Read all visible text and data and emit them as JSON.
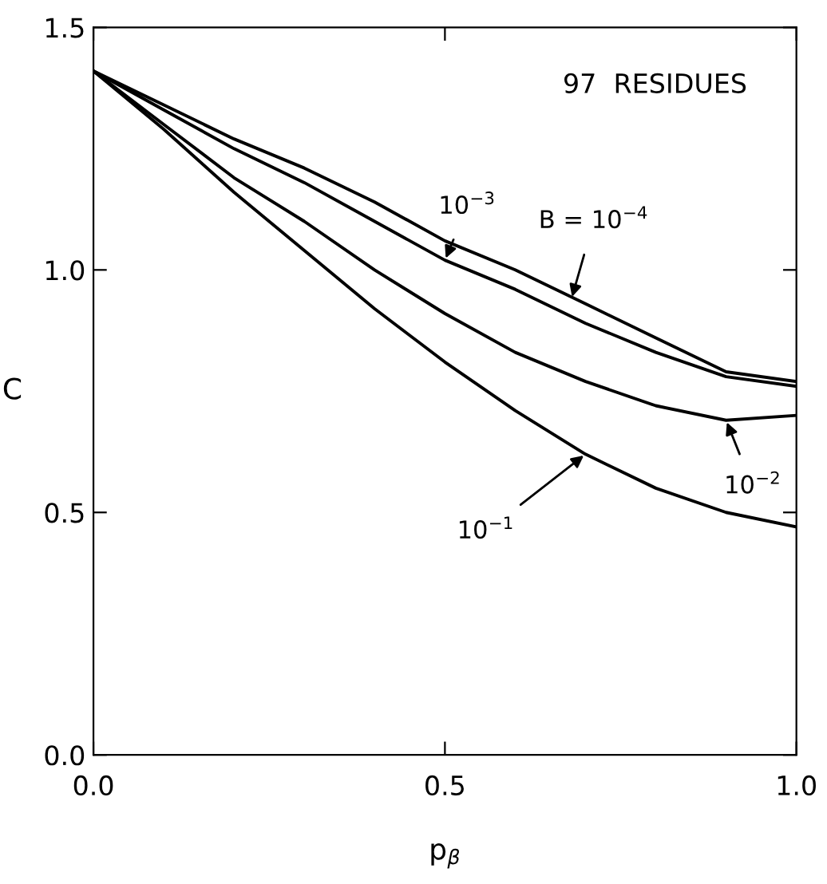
{
  "chart_data": {
    "type": "line",
    "xlabel": "p$_{β}$",
    "ylabel": "C",
    "x": [
      0,
      0.1,
      0.2,
      0.3,
      0.4,
      0.5,
      0.6,
      0.7,
      0.8,
      0.9,
      1.0
    ],
    "series": [
      {
        "color": "#000000",
        "values": [
          1.41,
          1.34,
          1.27,
          1.21,
          1.14,
          1.06,
          1.0,
          0.93,
          0.86,
          0.79,
          0.77
        ]
      },
      {
        "color": "#000000",
        "values": [
          1.41,
          1.33,
          1.25,
          1.18,
          1.1,
          1.02,
          0.96,
          0.89,
          0.83,
          0.78,
          0.76
        ]
      },
      {
        "color": "#000000",
        "values": [
          1.41,
          1.3,
          1.19,
          1.1,
          1.0,
          0.91,
          0.83,
          0.77,
          0.72,
          0.69,
          0.7
        ]
      },
      {
        "color": "#000000",
        "values": [
          1.41,
          1.29,
          1.16,
          1.04,
          0.92,
          0.81,
          0.71,
          0.62,
          0.55,
          0.5,
          0.47
        ]
      }
    ],
    "annotations": [
      "97  RESIDUES",
      {
        "text": "B = 10$^{−4}$",
        "x": 0.68,
        "y": 0.94
      },
      {
        "text": "10$^{−3}$",
        "x": 0.5,
        "y": 1.02
      },
      {
        "text": "10$^{−2}$",
        "x": 0.9,
        "y": 0.69
      },
      {
        "text": "10$^{−1}$",
        "x": 0.7,
        "y": 0.62
      }
    ],
    "xlim": [
      0,
      1.0
    ],
    "ylim": [
      0,
      1.5
    ],
    "xticks": [
      {
        "value": 0,
        "label": "0.0"
      },
      0.5,
      {
        "value": 1,
        "label": "1.0"
      }
    ],
    "yticks": [
      {
        "value": 0,
        "label": "0.0"
      },
      0.5,
      {
        "value": 1,
        "label": "1.0"
      },
      1.5
    ],
    "grid": false,
    "marker": "none",
    "line_style": "solid"
  }
}
